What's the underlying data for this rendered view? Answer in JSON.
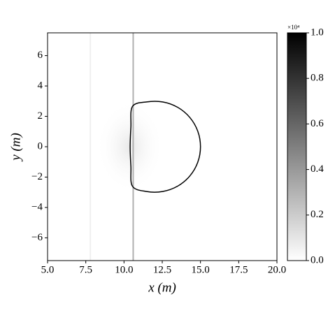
{
  "chart_data": {
    "type": "contour",
    "xlabel": "x (m)",
    "ylabel": "y (m)",
    "xlim": [
      5.0,
      20.0
    ],
    "ylim": [
      -7.5,
      7.5
    ],
    "xticks": [
      {
        "value": 5.0,
        "label": "5.0"
      },
      {
        "value": 7.5,
        "label": "7.5"
      },
      {
        "value": 10.0,
        "label": "10.0"
      },
      {
        "value": 12.5,
        "label": "12.5"
      },
      {
        "value": 15.0,
        "label": "15.0"
      },
      {
        "value": 17.5,
        "label": "17.5"
      },
      {
        "value": 20.0,
        "label": "20.0"
      }
    ],
    "yticks": [
      {
        "value": -6,
        "label": "−6"
      },
      {
        "value": -4,
        "label": "−4"
      },
      {
        "value": -2,
        "label": "−2"
      },
      0,
      2,
      4,
      6
    ],
    "contour": {
      "color": "#000000",
      "x": [
        10.55,
        11.48,
        12.52,
        13.5,
        14.3,
        14.82,
        15.0,
        14.82,
        14.3,
        13.5,
        12.52,
        11.48,
        10.55,
        10.45,
        10.4,
        10.45
      ],
      "y": [
        2.65,
        2.95,
        2.95,
        2.6,
        1.93,
        1.03,
        0,
        -1.03,
        -1.93,
        -2.6,
        -2.95,
        -2.95,
        -2.6,
        -1.3,
        0,
        1.3
      ]
    },
    "vlines": [
      {
        "x": 7.8,
        "color": "#efefef"
      },
      {
        "x": 10.6,
        "color": "#b0b0b0"
      }
    ],
    "colorbar": {
      "lim": [
        0.0,
        1.0
      ],
      "ticks": [
        {
          "value": 0.0,
          "label": "0.0"
        },
        {
          "value": 0.2,
          "label": "0.2"
        },
        {
          "value": 0.4,
          "label": "0.4"
        },
        {
          "value": 0.6,
          "label": "0.6"
        },
        {
          "value": 0.8,
          "label": "0.8"
        },
        {
          "value": 1.0,
          "label": "1.0"
        }
      ],
      "offset_label": "×10⁴",
      "cmap": [
        "#ffffff",
        "#000000"
      ]
    }
  }
}
